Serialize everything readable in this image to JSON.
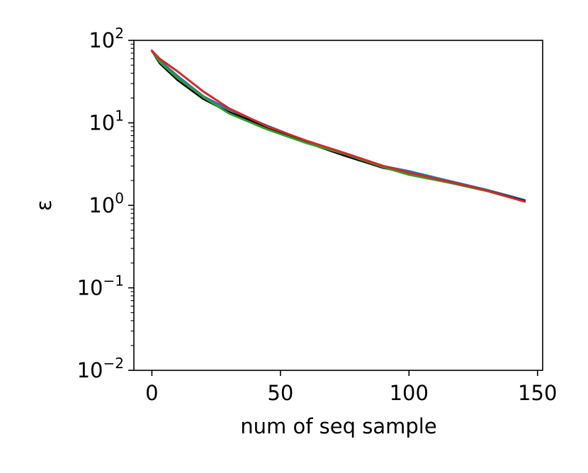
{
  "chart_data": {
    "type": "line",
    "xlabel": "num of seq sample",
    "ylabel": "ε",
    "xlim": [
      -7,
      152
    ],
    "ylim": [
      0.01,
      100
    ],
    "yscale": "log",
    "xticks": [
      0,
      50,
      100,
      150
    ],
    "yticks": [
      {
        "value": 100,
        "base": "10",
        "exp": "2"
      },
      {
        "value": 10,
        "base": "10",
        "exp": "1"
      },
      {
        "value": 1,
        "base": "10",
        "exp": "0"
      },
      {
        "value": 0.1,
        "base": "10",
        "exp": "−1"
      },
      {
        "value": 0.01,
        "base": "10",
        "exp": "−2"
      }
    ],
    "grid": false,
    "legend": "none",
    "series": [
      {
        "color": "#1f77b4",
        "x": [
          0,
          3,
          10,
          20,
          30,
          45,
          60,
          75,
          90,
          100,
          115,
          130,
          145
        ],
        "y": [
          75,
          57,
          37,
          21,
          14.5,
          9.2,
          6.0,
          4.3,
          3.0,
          2.6,
          2.0,
          1.55,
          1.16
        ]
      },
      {
        "color": "#000000",
        "x": [
          0,
          3,
          10,
          20,
          30,
          45,
          60,
          75,
          90,
          100,
          115,
          130,
          145
        ],
        "y": [
          75,
          53,
          33,
          19.5,
          13.5,
          8.8,
          5.8,
          4.0,
          2.85,
          2.45,
          1.95,
          1.52,
          1.13
        ]
      },
      {
        "color": "#2ca02c",
        "x": [
          0,
          3,
          10,
          20,
          30,
          45,
          60,
          75,
          90,
          100,
          115,
          130,
          145
        ],
        "y": [
          75,
          55,
          35,
          20.5,
          13.0,
          8.3,
          5.7,
          4.2,
          2.9,
          2.35,
          1.9,
          1.5,
          1.11
        ]
      },
      {
        "color": "#d62728",
        "x": [
          0,
          3,
          10,
          20,
          30,
          45,
          60,
          75,
          90,
          100,
          115,
          130,
          145
        ],
        "y": [
          75,
          60,
          42,
          24,
          15.0,
          9.0,
          6.1,
          4.3,
          3.0,
          2.5,
          1.95,
          1.52,
          1.11
        ]
      }
    ]
  }
}
